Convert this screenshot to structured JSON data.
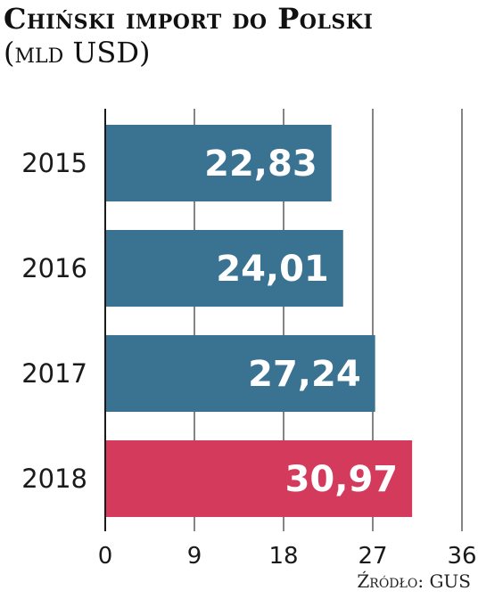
{
  "chart_data": {
    "type": "bar",
    "orientation": "horizontal",
    "title": "Chiński import do Polski",
    "subtitle": "(mld USD)",
    "categories": [
      "2015",
      "2016",
      "2017",
      "2018"
    ],
    "values": [
      22.83,
      24.01,
      27.24,
      30.97
    ],
    "value_labels": [
      "22,83",
      "24,01",
      "27,24",
      "30,97"
    ],
    "xticks": [
      "0",
      "9",
      "18",
      "27",
      "36"
    ],
    "xlim": [
      0,
      36
    ],
    "grid": true,
    "colors": {
      "default": "#3a7391",
      "highlight": "#d43a5c",
      "grid": "#333333",
      "label": "#ffffff"
    },
    "highlight_index": 3,
    "source": "Źródło: GUS"
  }
}
